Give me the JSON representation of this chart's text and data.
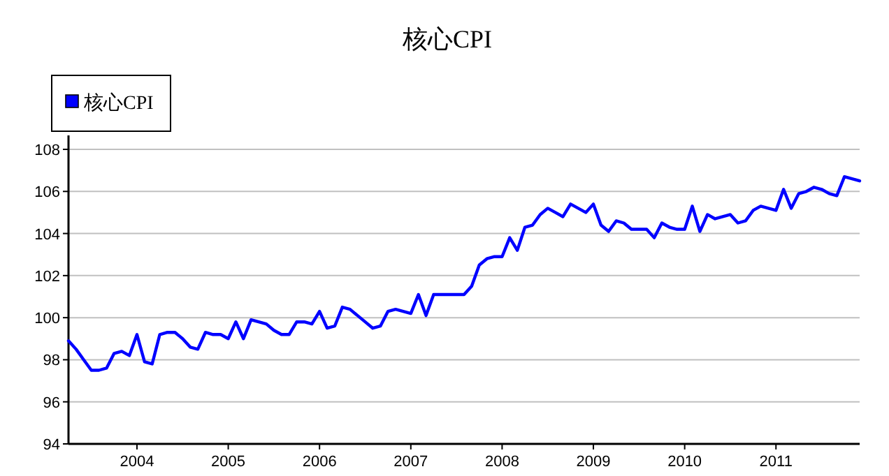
{
  "chart_data": {
    "type": "line",
    "title": "核心CPI",
    "x": [
      "2003-04",
      "2003-05",
      "2003-06",
      "2003-07",
      "2003-08",
      "2003-09",
      "2003-10",
      "2003-11",
      "2003-12",
      "2004-01",
      "2004-02",
      "2004-03",
      "2004-04",
      "2004-05",
      "2004-06",
      "2004-07",
      "2004-08",
      "2004-09",
      "2004-10",
      "2004-11",
      "2004-12",
      "2005-01",
      "2005-02",
      "2005-03",
      "2005-04",
      "2005-05",
      "2005-06",
      "2005-07",
      "2005-08",
      "2005-09",
      "2005-10",
      "2005-11",
      "2005-12",
      "2006-01",
      "2006-02",
      "2006-03",
      "2006-04",
      "2006-05",
      "2006-06",
      "2006-07",
      "2006-08",
      "2006-09",
      "2006-10",
      "2006-11",
      "2006-12",
      "2007-01",
      "2007-02",
      "2007-03",
      "2007-04",
      "2007-05",
      "2007-06",
      "2007-07",
      "2007-08",
      "2007-09",
      "2007-10",
      "2007-11",
      "2007-12",
      "2008-01",
      "2008-02",
      "2008-03",
      "2008-04",
      "2008-05",
      "2008-06",
      "2008-07",
      "2008-08",
      "2008-09",
      "2008-10",
      "2008-11",
      "2008-12",
      "2009-01",
      "2009-02",
      "2009-03",
      "2009-04",
      "2009-05",
      "2009-06",
      "2009-07",
      "2009-08",
      "2009-09",
      "2009-10",
      "2009-11",
      "2009-12",
      "2010-01",
      "2010-02",
      "2010-03",
      "2010-04",
      "2010-05",
      "2010-06",
      "2010-07",
      "2010-08",
      "2010-09",
      "2010-10",
      "2010-11",
      "2010-12",
      "2011-01",
      "2011-02",
      "2011-03",
      "2011-04",
      "2011-05",
      "2011-06",
      "2011-07",
      "2011-08",
      "2011-09",
      "2011-10",
      "2011-11",
      "2011-12"
    ],
    "series": [
      {
        "name": "核心CPI",
        "color": "#0000ff",
        "values": [
          98.9,
          98.5,
          98.0,
          97.5,
          97.5,
          97.6,
          98.3,
          98.4,
          98.2,
          99.2,
          97.9,
          97.8,
          99.2,
          99.3,
          99.3,
          99.0,
          98.6,
          98.5,
          99.3,
          99.2,
          99.2,
          99.0,
          99.8,
          99.0,
          99.9,
          99.8,
          99.7,
          99.4,
          99.2,
          99.2,
          99.8,
          99.8,
          99.7,
          100.3,
          99.5,
          99.6,
          100.5,
          100.4,
          100.1,
          99.8,
          99.5,
          99.6,
          100.3,
          100.4,
          100.3,
          100.2,
          101.1,
          100.1,
          101.1,
          101.1,
          101.1,
          101.1,
          101.1,
          101.5,
          102.5,
          102.8,
          102.9,
          102.9,
          103.8,
          103.2,
          104.3,
          104.4,
          104.9,
          105.2,
          105.0,
          104.8,
          105.4,
          105.2,
          105.0,
          105.4,
          104.4,
          104.1,
          104.6,
          104.5,
          104.2,
          104.2,
          104.2,
          103.8,
          104.5,
          104.3,
          104.2,
          104.2,
          105.3,
          104.1,
          104.9,
          104.7,
          104.8,
          104.9,
          104.5,
          104.6,
          105.1,
          105.3,
          105.2,
          105.1,
          106.1,
          105.2,
          105.9,
          106.0,
          106.2,
          106.1,
          105.9,
          105.8,
          106.7,
          106.6,
          106.5
        ]
      }
    ],
    "xlim": [
      "2003-04",
      "2011-12"
    ],
    "xticks": [
      "2004",
      "2005",
      "2006",
      "2007",
      "2008",
      "2009",
      "2010",
      "2011"
    ],
    "ylim": [
      94,
      108
    ],
    "yticks": [
      94,
      96,
      98,
      100,
      102,
      104,
      106,
      108
    ],
    "grid": "y",
    "legend": "top left"
  }
}
